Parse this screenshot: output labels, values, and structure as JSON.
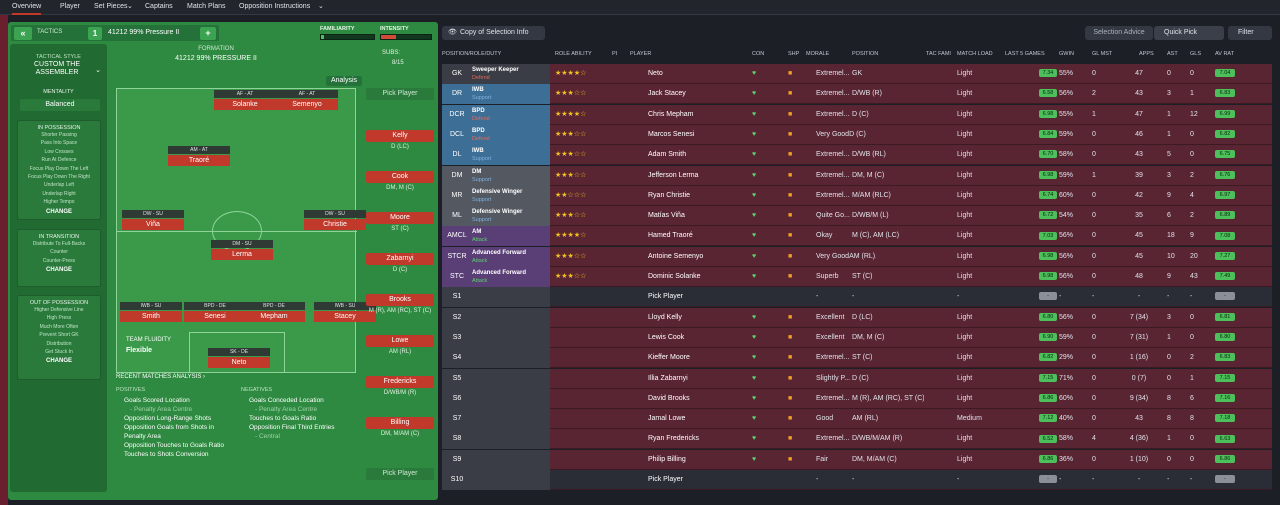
{
  "nav": {
    "tabs": [
      "Overview",
      "Player",
      "Set Pieces",
      "Captains",
      "Match Plans",
      "Opposition Instructions"
    ],
    "dropdown_marks": [
      "⌄",
      "⌄"
    ]
  },
  "tactics": {
    "header": "TACTICS",
    "num": "1",
    "name": "41212 99% Pressure II",
    "familiarity_label": "FAMILIARITY",
    "intensity_label": "INTENSITY",
    "familiarity": 0.06,
    "intensity": 0.3,
    "formation_label": "FORMATION",
    "formation_name": "41212 99% PRESSURE II",
    "analysis": "Analysis",
    "subs_label": "SUBS:",
    "subs_count": "8/15",
    "pick_player": "Pick Player"
  },
  "style": {
    "label": "TACTICAL STYLE",
    "name": "CUSTOM THE ASSEMBLER",
    "mentality_label": "MENTALITY",
    "mentality": "Balanced"
  },
  "possession": {
    "title": "IN POSSESSION",
    "items": [
      "Shorter Passing",
      "Pass Into Space",
      "Low Crosses",
      "Run At Defence",
      "Focus Play Down The Left",
      "Focus Play Down The Right",
      "Underlap Left",
      "Underlap Right",
      "Higher Tempo"
    ],
    "change": "CHANGE"
  },
  "transition": {
    "title": "IN TRANSITION",
    "items": [
      "Distribute To Full-Backs",
      "Counter",
      "Counter-Press"
    ],
    "change": "CHANGE"
  },
  "outposs": {
    "title": "OUT OF POSSESSION",
    "items": [
      "Higher Defensive Line",
      "High Press",
      "Much More Often",
      "Prevent Short GK",
      "Distribution",
      "Get Stuck In"
    ],
    "change": "CHANGE"
  },
  "fluidity": {
    "label": "TEAM FLUIDITY",
    "value": "Flexible"
  },
  "pitch": [
    {
      "role": "AF - AT",
      "name": "Solanke"
    },
    {
      "role": "AF - AT",
      "name": "Semenyo"
    },
    {
      "role": "AM - AT",
      "name": "Traoré"
    },
    {
      "role": "DW - SU",
      "name": "Viña"
    },
    {
      "role": "DW - SU",
      "name": "Christie"
    },
    {
      "role": "DM - SU",
      "name": "Lerma"
    },
    {
      "role": "IWB - SU",
      "name": "Smith"
    },
    {
      "role": "BPD - DE",
      "name": "Senesi"
    },
    {
      "role": "BPD - DE",
      "name": "Mepham"
    },
    {
      "role": "IWB - SU",
      "name": "Stacey"
    },
    {
      "role": "SK - DE",
      "name": "Neto"
    }
  ],
  "subs": [
    {
      "name": "Kelly",
      "pos": "D (LC)"
    },
    {
      "name": "Cook",
      "pos": "DM, M (C)"
    },
    {
      "name": "Moore",
      "pos": "ST (C)"
    },
    {
      "name": "Zabarnyi",
      "pos": "D (C)"
    },
    {
      "name": "Brooks",
      "pos": "M (R), AM (RC), ST (C)"
    },
    {
      "name": "Lowe",
      "pos": "AM (RL)"
    },
    {
      "name": "Fredericks",
      "pos": "D/WB/M (R)"
    },
    {
      "name": "Billing",
      "pos": "DM, M/AM (C)"
    }
  ],
  "recent": {
    "title": "RECENT MATCHES ANALYSIS ›",
    "positives_label": "POSITIVES",
    "negatives_label": "NEGATIVES",
    "positives": [
      "Goals Scored Location",
      "- Penalty Area Centre",
      "Opposition Long-Range Shots",
      "Opposition Goals from Shots in Penalty Area",
      "Opposition Touches to Goals Ratio",
      "Touches to Shots Conversion"
    ],
    "negatives": [
      "Goals Conceded Location",
      "- Penalty Area Centre",
      "Touches to Goals Ratio",
      "Opposition Final Third Entries",
      "- Central"
    ]
  },
  "selection": {
    "view": "Copy of Selection Info",
    "advice": "Selection Advice",
    "quick": "Quick Pick",
    "filter": "Filter"
  },
  "columns": [
    "POSITION/ROLE/DUTY",
    "ROLE ABILITY",
    "PI",
    "PLAYER",
    "CON",
    "SHP",
    "MORALE",
    "POSITION",
    "TAC FAMI",
    "MATCH LOAD",
    "LAST 5 GAMES",
    "GWIN",
    "GL MST",
    "APPS",
    "AST",
    "GLS",
    "AV RAT"
  ],
  "rows": [
    {
      "code": "GK",
      "role": "Sweeper Keeper",
      "duty": "Defend",
      "stars": 3.5,
      "player": "Neto",
      "morale": "Extremel...",
      "position": "GK",
      "load": "Light",
      "form": "7.34",
      "gwin": "55%",
      "glm": "0",
      "apps": "47",
      "ast": "0",
      "gls": "0",
      "rat": "7.04"
    },
    {
      "code": "DR",
      "role": "IWB",
      "duty": "Support",
      "stars": 2.5,
      "player": "Jack Stacey",
      "morale": "Extremel...",
      "position": "D/WB (R)",
      "load": "Light",
      "form": "6.58",
      "gwin": "56%",
      "glm": "2",
      "apps": "43",
      "ast": "3",
      "gls": "1",
      "rat": "6.83"
    },
    {
      "code": "DCR",
      "role": "BPD",
      "duty": "Defend",
      "stars": 3.5,
      "player": "Chris Mepham",
      "morale": "Extremel...",
      "position": "D (C)",
      "load": "Light",
      "form": "6.98",
      "gwin": "55%",
      "glm": "1",
      "apps": "47",
      "ast": "1",
      "gls": "12",
      "rat": "6.99"
    },
    {
      "code": "DCL",
      "role": "BPD",
      "duty": "Defend",
      "stars": 3,
      "player": "Marcos Senesi",
      "morale": "Very GoodD (C)",
      "position": "",
      "load": "Light",
      "form": "6.84",
      "gwin": "59%",
      "glm": "0",
      "apps": "46",
      "ast": "1",
      "gls": "0",
      "rat": "6.82"
    },
    {
      "code": "DL",
      "role": "IWB",
      "duty": "Support",
      "stars": 2.5,
      "player": "Adam Smith",
      "morale": "Extremel...",
      "position": "D/WB (RL)",
      "load": "Light",
      "form": "6.70",
      "gwin": "58%",
      "glm": "0",
      "apps": "43",
      "ast": "5",
      "gls": "0",
      "rat": "6.75"
    },
    {
      "code": "DM",
      "role": "DM",
      "duty": "Support",
      "stars": 3,
      "player": "Jefferson Lerma",
      "morale": "Extremel...",
      "position": "DM, M (C)",
      "load": "Light",
      "form": "6.98",
      "gwin": "59%",
      "glm": "1",
      "apps": "39",
      "ast": "3",
      "gls": "2",
      "rat": "6.76"
    },
    {
      "code": "MR",
      "role": "Defensive Winger",
      "duty": "Support",
      "stars": 2,
      "player": "Ryan Christie",
      "morale": "Extremel...",
      "position": "M/AM (RLC)",
      "load": "Light",
      "form": "6.74",
      "gwin": "60%",
      "glm": "0",
      "apps": "42",
      "ast": "9",
      "gls": "4",
      "rat": "6.97"
    },
    {
      "code": "ML",
      "role": "Defensive Winger",
      "duty": "Support",
      "stars": 2.5,
      "player": "Matías Viña",
      "morale": "Quite Go...",
      "position": "D/WB/M (L)",
      "load": "Light",
      "form": "6.72",
      "gwin": "54%",
      "glm": "0",
      "apps": "35",
      "ast": "6",
      "gls": "2",
      "rat": "6.89"
    },
    {
      "code": "AMCL",
      "role": "AM",
      "duty": "Attack",
      "stars": 4,
      "player": "Hamed Traoré",
      "morale": "Okay",
      "position": "M (C), AM (LC)",
      "load": "Light",
      "form": "7.03",
      "gwin": "56%",
      "glm": "0",
      "apps": "45",
      "ast": "18",
      "gls": "9",
      "rat": "7.08"
    },
    {
      "code": "STCR",
      "role": "Advanced Forward",
      "duty": "Attack",
      "stars": 2.5,
      "player": "Antoine Semenyo",
      "morale": "Very GoodAM (RL), ST (C)",
      "position": "",
      "load": "Light",
      "form": "6.98",
      "gwin": "56%",
      "glm": "0",
      "apps": "45",
      "ast": "10",
      "gls": "20",
      "rat": "7.27"
    },
    {
      "code": "STC",
      "role": "Advanced Forward",
      "duty": "Attack",
      "stars": 3,
      "player": "Dominic Solanke",
      "morale": "Superb",
      "position": "ST (C)",
      "load": "Light",
      "form": "6.98",
      "gwin": "56%",
      "glm": "0",
      "apps": "48",
      "ast": "9",
      "gls": "43",
      "rat": "7.49"
    },
    {
      "code": "S1",
      "role": "",
      "duty": "",
      "stars": 0,
      "player": "Pick Player",
      "morale": "-",
      "position": "-",
      "load": "-",
      "form": "-",
      "gwin": "-",
      "glm": "-",
      "apps": "-",
      "ast": "-",
      "gls": "-",
      "rat": "-",
      "empty": true
    },
    {
      "code": "S2",
      "role": "",
      "duty": "",
      "stars": 0,
      "player": "Lloyd Kelly",
      "morale": "Excellent",
      "position": "D (LC)",
      "load": "Light",
      "form": "6.80",
      "gwin": "56%",
      "glm": "0",
      "apps": "7 (34)",
      "ast": "3",
      "gls": "0",
      "rat": "6.81"
    },
    {
      "code": "S3",
      "role": "",
      "duty": "",
      "stars": 0,
      "player": "Lewis Cook",
      "morale": "Excellent",
      "position": "DM, M (C)",
      "load": "Light",
      "form": "6.90",
      "gwin": "59%",
      "glm": "0",
      "apps": "7 (31)",
      "ast": "1",
      "gls": "0",
      "rat": "6.80"
    },
    {
      "code": "S4",
      "role": "",
      "duty": "",
      "stars": 0,
      "player": "Kieffer Moore",
      "morale": "Extremel...",
      "position": "ST (C)",
      "load": "Light",
      "form": "6.82",
      "gwin": "29%",
      "glm": "0",
      "apps": "1 (16)",
      "ast": "0",
      "gls": "2",
      "rat": "6.83"
    },
    {
      "code": "S5",
      "role": "",
      "duty": "",
      "stars": 0,
      "player": "Illia Zabarnyi",
      "morale": "Slightly P...",
      "position": "D (C)",
      "load": "Light",
      "form": "7.15",
      "gwin": "71%",
      "glm": "0",
      "apps": "0 (7)",
      "ast": "0",
      "gls": "1",
      "rat": "7.15"
    },
    {
      "code": "S6",
      "role": "",
      "duty": "",
      "stars": 0,
      "player": "David Brooks",
      "morale": "Extremel...",
      "position": "M (R), AM (RC), ST (C)",
      "load": "Light",
      "form": "6.86",
      "gwin": "60%",
      "glm": "0",
      "apps": "9 (34)",
      "ast": "8",
      "gls": "6",
      "rat": "7.16"
    },
    {
      "code": "S7",
      "role": "",
      "duty": "",
      "stars": 0,
      "player": "Jamal Lowe",
      "morale": "Good",
      "position": "AM (RL)",
      "load": "Medium",
      "form": "7.12",
      "gwin": "40%",
      "glm": "0",
      "apps": "43",
      "ast": "8",
      "gls": "8",
      "rat": "7.18"
    },
    {
      "code": "S8",
      "role": "",
      "duty": "",
      "stars": 0,
      "player": "Ryan Fredericks",
      "morale": "Extremel...",
      "position": "D/WB/M/AM (R)",
      "load": "Light",
      "form": "6.52",
      "gwin": "58%",
      "glm": "4",
      "apps": "4 (36)",
      "ast": "1",
      "gls": "0",
      "rat": "6.63"
    },
    {
      "code": "S9",
      "role": "",
      "duty": "",
      "stars": 0,
      "player": "Philip Billing",
      "morale": "Fair",
      "position": "DM, M/AM (C)",
      "load": "Light",
      "form": "6.86",
      "gwin": "36%",
      "glm": "0",
      "apps": "1 (10)",
      "ast": "0",
      "gls": "0",
      "rat": "6.86"
    },
    {
      "code": "S10",
      "role": "",
      "duty": "",
      "stars": 0,
      "player": "Pick Player",
      "morale": "-",
      "position": "-",
      "load": "-",
      "form": "-",
      "gwin": "-",
      "glm": "-",
      "apps": "-",
      "ast": "-",
      "gls": "-",
      "rat": "-",
      "empty": true
    }
  ],
  "colors": {
    "accent": "#c0392b",
    "green": "#2e8a40",
    "def_band": "#3d6f96",
    "mid_band": "#545861",
    "att_band": "#5a3f77"
  }
}
